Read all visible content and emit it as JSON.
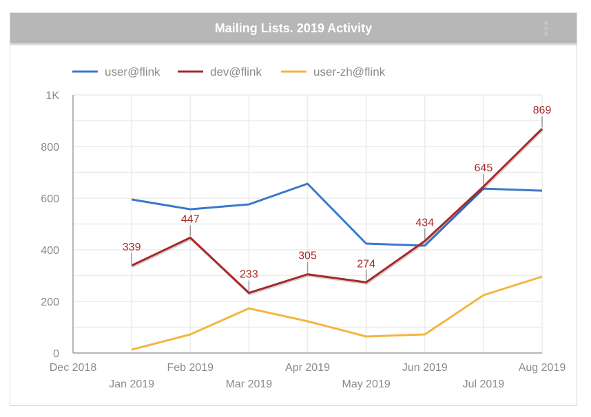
{
  "header": {
    "title": "Mailing Lists. 2019 Activity",
    "menu_icon": "more-vert-icon"
  },
  "chart_data": {
    "type": "line",
    "title": "Mailing Lists. 2019 Activity",
    "xlabel": "",
    "ylabel": "",
    "x_ticks": [
      "Dec 2018",
      "Jan 2019",
      "Feb 2019",
      "Mar 2019",
      "Apr 2019",
      "May 2019",
      "Jun 2019",
      "Jul 2019",
      "Aug 2019"
    ],
    "y_ticks": [
      "0",
      "200",
      "400",
      "600",
      "800",
      "1K"
    ],
    "y_tick_values": [
      0,
      200,
      400,
      600,
      800,
      1000
    ],
    "ylim": [
      0,
      1000
    ],
    "grid": true,
    "legend_position": "top-left",
    "categories": [
      "Jan 2019",
      "Feb 2019",
      "Mar 2019",
      "Apr 2019",
      "May 2019",
      "Jun 2019",
      "Jul 2019",
      "Aug 2019"
    ],
    "series": [
      {
        "name": "user@flink",
        "color": "#3a78cc",
        "values": [
          595,
          557,
          576,
          656,
          424,
          416,
          637,
          629
        ],
        "labels": false
      },
      {
        "name": "dev@flink",
        "color": "#a52a2a",
        "values": [
          339,
          447,
          233,
          305,
          274,
          434,
          645,
          869
        ],
        "labels": true
      },
      {
        "name": "user-zh@flink",
        "color": "#f4b53f",
        "values": [
          13,
          72,
          173,
          123,
          64,
          72,
          224,
          296
        ],
        "labels": false
      }
    ]
  }
}
